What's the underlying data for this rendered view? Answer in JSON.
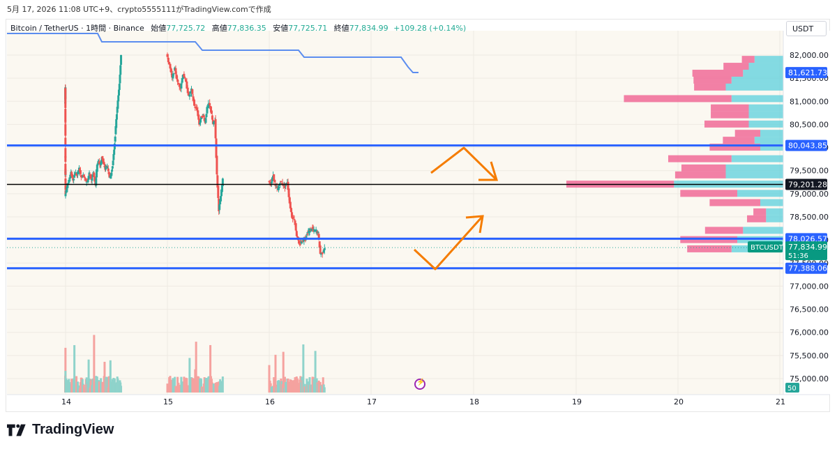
{
  "caption": "5月 17, 2026 11:08 UTC+9、crypto5555111がTradingView.comで作成",
  "legend": {
    "symbol": "Bitcoin / TetherUS · 1時間 · Binance",
    "open_label": "始値",
    "open": "77,725.72",
    "high_label": "高値",
    "high": "77,836.35",
    "low_label": "安値",
    "low": "77,725.71",
    "close_label": "終値",
    "close": "77,834.99",
    "change": "+109.28 (+0.14%)"
  },
  "currency_button": "USDT",
  "brand": "TradingView",
  "colors": {
    "up": "#26a69a",
    "down": "#ef5350",
    "level": "#2962ff",
    "arrow": "#f57c00",
    "vol_up": "#8fd3cb",
    "vol_down": "#f5a29f",
    "profile_up": "#5bd0dc",
    "profile_down": "#f06292",
    "trend_line": "#5b8def"
  },
  "chart_data": {
    "type": "candlestick",
    "symbol": "BTCUSDT",
    "x_tick_labels": [
      "14",
      "15",
      "16",
      "17",
      "18",
      "19",
      "20",
      "21"
    ],
    "y_tick_labels": [
      "82,000.00",
      "81,500.00",
      "81,000.00",
      "80,500.00",
      "80,000.00",
      "79,500.00",
      "79,000.00",
      "78,500.00",
      "78,000.00",
      "77,500.00",
      "77,000.00",
      "76,500.00",
      "76,000.00",
      "75,500.00",
      "75,000.00"
    ],
    "ylim": [
      74700,
      82250
    ],
    "ohlc_segments": [
      {
        "from": "13.6",
        "to": "14.0",
        "path": [
          80950,
          81000,
          81300,
          81100,
          81050,
          81250,
          81300,
          80600,
          80450,
          79800,
          79400,
          79500,
          79450,
          79300,
          79300,
          78950
        ]
      },
      {
        "from": "14.0",
        "to": "14.3",
        "path": [
          78950,
          79150,
          79300,
          79450,
          79300,
          79450,
          79400,
          79550,
          79350,
          79400,
          79300,
          79250,
          79450,
          79300,
          79450,
          79200
        ]
      },
      {
        "from": "14.3",
        "to": "14.55",
        "path": [
          79200,
          79650,
          79700,
          79600,
          79800,
          79650,
          79550,
          79600,
          79500,
          79350,
          79450,
          79700,
          80100,
          80600,
          81000,
          81400,
          82000
        ]
      },
      {
        "from": "15.0",
        "to": "15.3",
        "path": [
          82000,
          81800,
          81500,
          81700,
          81400,
          81300,
          81600,
          81400,
          81100,
          81250,
          80900,
          80800
        ]
      },
      {
        "from": "15.3",
        "to": "15.55",
        "path": [
          80800,
          80500,
          80650,
          80700,
          80550,
          80850,
          80950,
          80800,
          80500,
          80600,
          79400,
          78650,
          78950,
          79300
        ]
      },
      {
        "from": "16.0",
        "to": "16.3",
        "path": [
          79300,
          79200,
          79400,
          79150,
          79100,
          79250,
          79200,
          79150,
          79250,
          78800,
          78500,
          78450,
          78100,
          77900
        ]
      },
      {
        "from": "16.3",
        "to": "16.55",
        "path": [
          77900,
          77950,
          78000,
          78050,
          78150,
          78200,
          78250,
          78200,
          78200,
          78150,
          77700,
          77720,
          77835
        ]
      }
    ],
    "price_levels": [
      {
        "price": 80043.85,
        "label": "80,043.85",
        "color": "blue"
      },
      {
        "price": 79201.28,
        "label": "79,201.28",
        "color": "black"
      },
      {
        "price": 78026.57,
        "label": "78,026.57",
        "color": "blue"
      },
      {
        "price": 77388.06,
        "label": "77,388.06",
        "color": "blue"
      }
    ],
    "last_price": {
      "label": "BTCUSDT",
      "price": "77,834.99",
      "countdown": "51:36"
    },
    "upper_line_label": "81,621.73",
    "volume_label": "50",
    "volume_profile": [
      {
        "price": 81900,
        "up": 0.25,
        "down": 0.1
      },
      {
        "price": 81750,
        "up": 0.3,
        "down": 0.2
      },
      {
        "price": 81600,
        "up": 0.35,
        "down": 0.4
      },
      {
        "price": 81450,
        "up": 0.45,
        "down": 0.3
      },
      {
        "price": 81300,
        "up": 0.5,
        "down": 0.25
      },
      {
        "price": 81050,
        "up": 0.45,
        "down": 0.85
      },
      {
        "price": 80850,
        "up": 0.3,
        "down": 0.3
      },
      {
        "price": 80700,
        "up": 0.3,
        "down": 0.3
      },
      {
        "price": 80500,
        "up": 0.3,
        "down": 0.35
      },
      {
        "price": 80300,
        "up": 0.2,
        "down": 0.2
      },
      {
        "price": 80150,
        "up": 0.25,
        "down": 0.25
      },
      {
        "price": 80000,
        "up": 0.2,
        "down": 0.4
      },
      {
        "price": 79750,
        "up": 0.45,
        "down": 0.5
      },
      {
        "price": 79550,
        "up": 0.5,
        "down": 0.35
      },
      {
        "price": 79400,
        "up": 0.5,
        "down": 0.4
      },
      {
        "price": 79200,
        "up": 0.95,
        "down": 0.85
      },
      {
        "price": 79000,
        "up": 0.4,
        "down": 0.45
      },
      {
        "price": 78800,
        "up": 0.2,
        "down": 0.4
      },
      {
        "price": 78600,
        "up": 0.15,
        "down": 0.1
      },
      {
        "price": 78450,
        "up": 0.15,
        "down": 0.15
      },
      {
        "price": 78200,
        "up": 0.35,
        "down": 0.3
      },
      {
        "price": 78000,
        "up": 0.4,
        "down": 0.45
      },
      {
        "price": 77800,
        "up": 0.45,
        "down": 0.35
      }
    ],
    "volume_bars_up_share": 0.5
  }
}
